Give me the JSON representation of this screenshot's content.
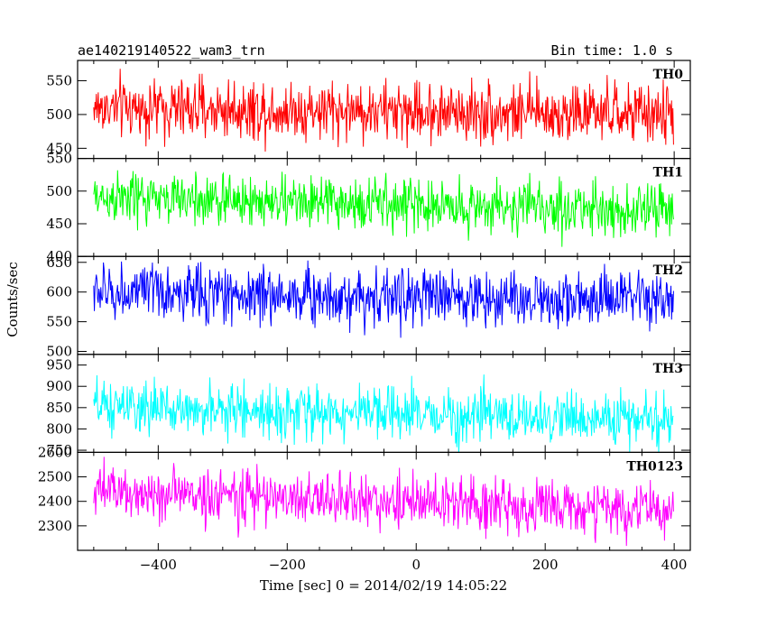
{
  "header": {
    "title": "ae140219140522_wam3_trn",
    "bin_time": "Bin time: 1.0 s"
  },
  "chart_data": {
    "type": "line",
    "xlabel": "Time [sec] 0 = 2014/02/19 14:05:22",
    "ylabel": "Counts/sec",
    "xlim": [
      -525,
      425
    ],
    "x_range": [
      -500,
      399
    ],
    "bin_time_s": 1.0,
    "x_ticks": [
      -400,
      -200,
      0,
      200,
      400
    ],
    "panels": [
      {
        "name": "TH0",
        "color": "#ff0000",
        "ylim": [
          435,
          580
        ],
        "yticks": [
          450,
          500,
          550
        ],
        "mean_start": 510,
        "mean_end": 500,
        "noise": 22
      },
      {
        "name": "TH1",
        "color": "#00ff00",
        "ylim": [
          400,
          550
        ],
        "yticks": [
          400,
          450,
          500,
          550
        ],
        "mean_start": 490,
        "mean_end": 470,
        "noise": 20
      },
      {
        "name": "TH2",
        "color": "#0000ff",
        "ylim": [
          495,
          660
        ],
        "yticks": [
          500,
          550,
          600,
          650
        ],
        "mean_start": 600,
        "mean_end": 585,
        "noise": 24
      },
      {
        "name": "TH3",
        "color": "#00ffff",
        "ylim": [
          745,
          975
        ],
        "yticks": [
          750,
          800,
          850,
          900,
          950
        ],
        "mean_start": 850,
        "mean_end": 820,
        "noise": 30
      },
      {
        "name": "TH0123",
        "color": "#ff00ff",
        "ylim": [
          2200,
          2600
        ],
        "yticks": [
          2300,
          2400,
          2500,
          2600
        ],
        "mean_start": 2440,
        "mean_end": 2360,
        "noise": 55
      }
    ]
  }
}
